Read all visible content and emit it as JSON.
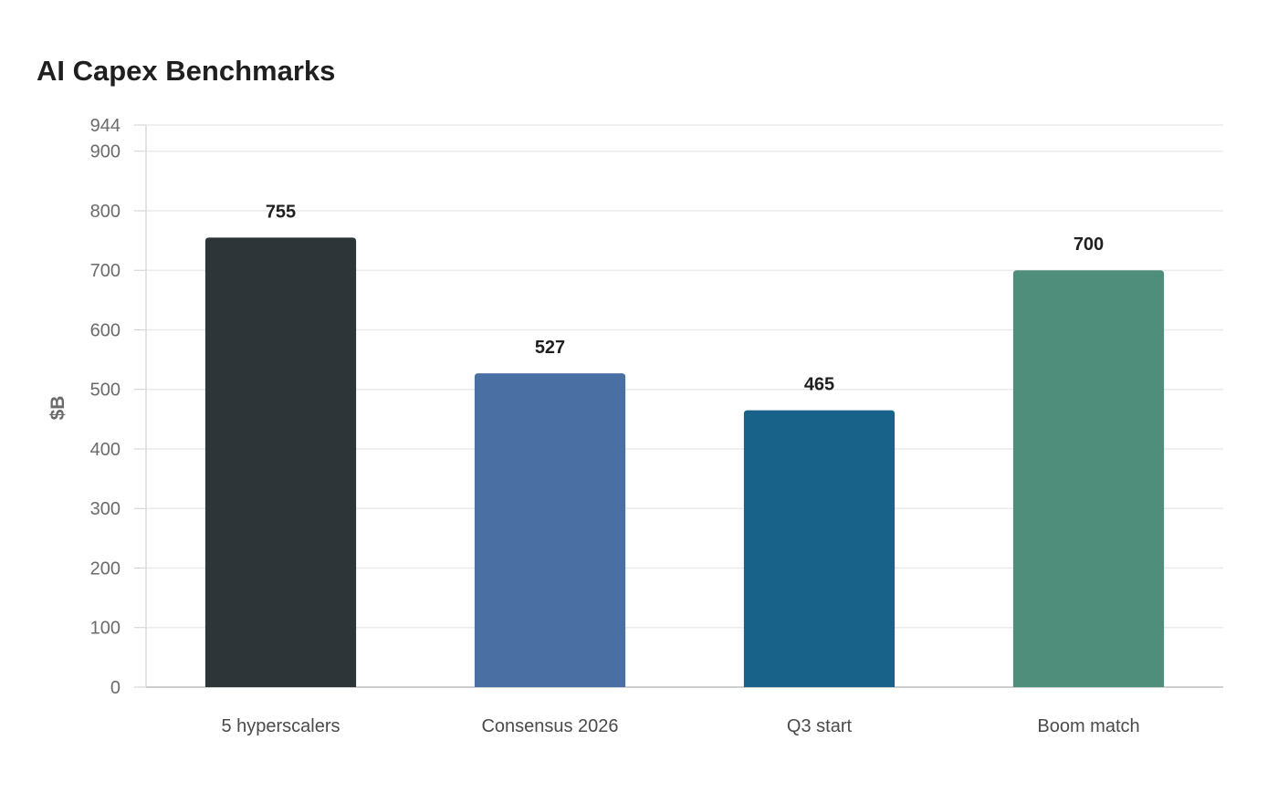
{
  "chart_data": {
    "type": "bar",
    "title": "AI Capex Benchmarks",
    "xlabel": "",
    "ylabel": "$B",
    "categories": [
      "5 hyperscalers",
      "Consensus 2026",
      "Q3 start",
      "Boom match"
    ],
    "values": [
      755,
      527,
      465,
      700
    ],
    "data_labels": [
      "755",
      "527",
      "465",
      "700"
    ],
    "colors": [
      "#2e3538",
      "#4a6fa3",
      "#186189",
      "#4f8e7b"
    ],
    "ylim": [
      0,
      944
    ],
    "yticks": [
      0,
      100,
      200,
      300,
      400,
      500,
      600,
      700,
      800,
      900,
      944
    ],
    "grid": true,
    "legend": "none"
  }
}
